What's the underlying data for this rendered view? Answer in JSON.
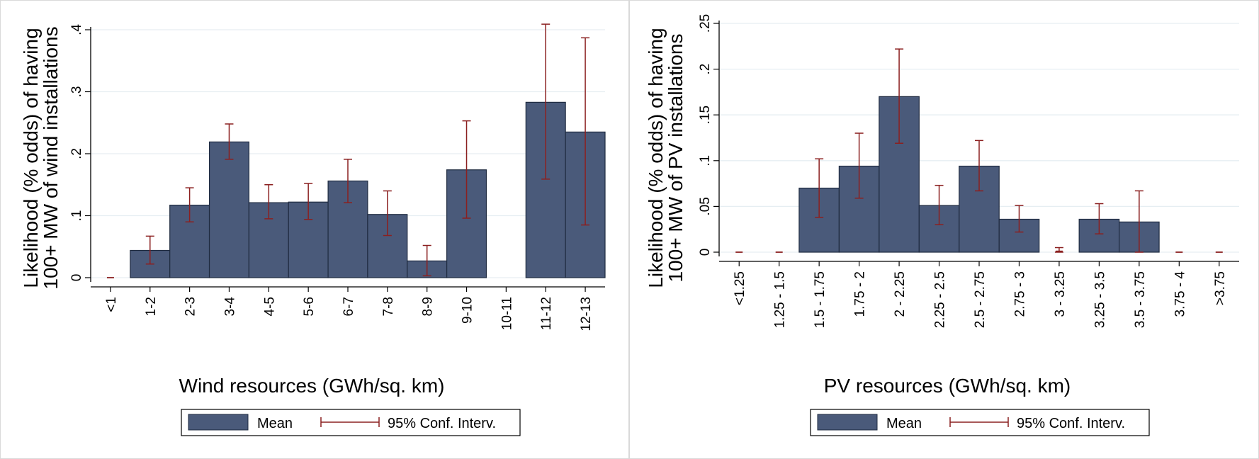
{
  "chart_data": [
    {
      "type": "bar",
      "title": "",
      "xlabel": "Wind resources (GWh/sq. km)",
      "ylabel_lines": [
        "Likelihood (% odds) of having",
        "100+ MW of wind installations"
      ],
      "categories": [
        "<1",
        "1-2",
        "2-3",
        "3-4",
        "4-5",
        "5-6",
        "6-7",
        "7-8",
        "8-9",
        "9-10",
        "10-11",
        "11-12",
        "12-13"
      ],
      "values": [
        0,
        0.044,
        0.117,
        0.219,
        0.121,
        0.122,
        0.156,
        0.102,
        0.027,
        0.174,
        null,
        0.283,
        0.235
      ],
      "ci_low": [
        null,
        0.022,
        0.09,
        0.191,
        0.095,
        0.094,
        0.121,
        0.068,
        0.003,
        0.096,
        null,
        0.159,
        0.085
      ],
      "ci_high": [
        null,
        0.067,
        0.145,
        0.248,
        0.15,
        0.152,
        0.191,
        0.14,
        0.052,
        0.253,
        null,
        0.409,
        0.387
      ],
      "ylim": [
        0,
        0.4
      ],
      "yticks": [
        0,
        0.1,
        0.2,
        0.3,
        0.4
      ],
      "ytick_labels": [
        "0",
        ".1",
        ".2",
        ".3",
        ".4"
      ],
      "grid": true,
      "legend": {
        "position": "bottom",
        "mean_label": "Mean",
        "ci_label": "95% Conf. Interv."
      },
      "colors": {
        "bar": "#4a5a7a",
        "bar_edge": "#1f2b40",
        "ci": "#8b2020",
        "grid": "#e6eef2"
      }
    },
    {
      "type": "bar",
      "title": "",
      "xlabel": "PV resources (GWh/sq. km)",
      "ylabel_lines": [
        "Likelihood (% odds) of having",
        "100+ MW of PV installations"
      ],
      "categories": [
        "<1.25",
        "1.25 - 1.5",
        "1.5 - 1.75",
        "1.75 - 2",
        "2 - 2.25",
        "2.25 - 2.5",
        "2.5 - 2.75",
        "2.75 - 3",
        "3 - 3.25",
        "3.25 - 3.5",
        "3.5 - 3.75",
        "3.75 - 4",
        ">3.75"
      ],
      "values": [
        0,
        0,
        0.07,
        0.094,
        0.17,
        0.051,
        0.094,
        0.036,
        0.001,
        0.036,
        0.033,
        0,
        0
      ],
      "ci_low": [
        null,
        null,
        0.038,
        0.059,
        0.119,
        0.03,
        0.067,
        0.022,
        0,
        0.02,
        0,
        null,
        null
      ],
      "ci_high": [
        null,
        null,
        0.102,
        0.13,
        0.222,
        0.073,
        0.122,
        0.051,
        0.005,
        0.053,
        0.067,
        null,
        null
      ],
      "ylim": [
        0,
        0.25
      ],
      "yticks": [
        0,
        0.05,
        0.1,
        0.15,
        0.2,
        0.25
      ],
      "ytick_labels": [
        "0",
        ".05",
        ".1",
        ".15",
        ".2",
        ".25"
      ],
      "grid": true,
      "legend": {
        "position": "bottom",
        "mean_label": "Mean",
        "ci_label": "95% Conf. Interv."
      },
      "colors": {
        "bar": "#4a5a7a",
        "bar_edge": "#1f2b40",
        "ci": "#8b2020",
        "grid": "#e6eef2"
      }
    }
  ]
}
